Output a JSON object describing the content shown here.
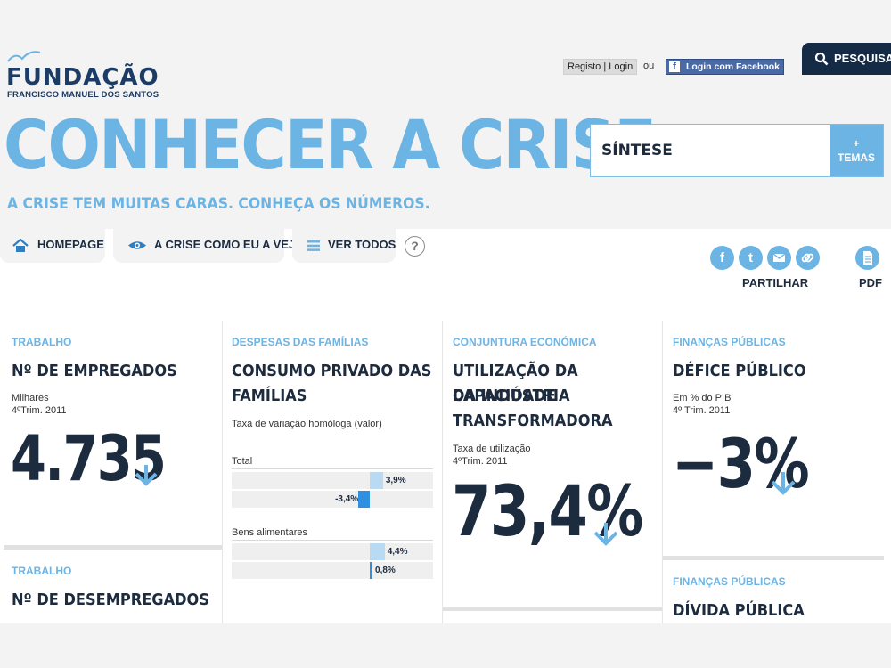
{
  "header": {
    "logo_name": "FUNDAÇÃO",
    "logo_sub": "FRANCISCO MANUEL DOS SANTOS",
    "login_label": "Registo | Login",
    "or_label": "ou",
    "facebook_label": "Login com Facebook",
    "search_label": "PESQUISA",
    "title": "CONHECER A CRISE:",
    "subtitle": "A CRISE TEM MUITAS CARAS. CONHEÇA OS NÚMEROS.",
    "selector_label": "SÍNTESE",
    "temas_plus": "+",
    "temas_label": "TEMAS"
  },
  "nav": {
    "tabs": [
      {
        "label": "HOMEPAGE",
        "icon": "home-icon"
      },
      {
        "label": "A CRISE COMO EU A VEJO",
        "icon": "eye-icon"
      },
      {
        "label": "VER TODOS",
        "icon": "list-icon"
      }
    ],
    "help_label": "?"
  },
  "share": {
    "label": "PARTILHAR",
    "pdf_label": "PDF",
    "icons": [
      "facebook-icon",
      "twitter-icon",
      "email-icon",
      "link-icon",
      "pdf-icon"
    ]
  },
  "cards": {
    "employed": {
      "category": "TRABALHO",
      "title": "Nº DE EMPREGADOS",
      "unit": "Milhares",
      "period": "4ºTrim. 2011",
      "value": "4.735",
      "trend": "down"
    },
    "unemployed": {
      "category": "TRABALHO",
      "title": "Nº DE DESEMPREGADOS"
    },
    "consumption": {
      "category": "DESPESAS DAS FAMÍLIAS",
      "title_line1": "CONSUMO PRIVADO DAS",
      "title_line2": "FAMÍLIAS",
      "measure": "Taxa de variação homóloga (valor)"
    },
    "capacity": {
      "category": "CONJUNTURA ECONÓMICA",
      "title_line1": "UTILIZAÇÃO DA CAPACIDADE",
      "title_line2": "DA INDÚSTRIA",
      "title_line3": "TRANSFORMADORA",
      "measure": "Taxa de utilização",
      "period": "4ºTrim. 2011",
      "value": "73,4%",
      "trend": "down"
    },
    "deficit": {
      "category": "FINANÇAS PÚBLICAS",
      "title": "DÉFICE PÚBLICO",
      "unit": "Em % do PIB",
      "period": "4º Trim. 2011",
      "value": "−3%",
      "trend": "down"
    },
    "debt": {
      "category": "FINANÇAS PÚBLICAS",
      "title": "DÍVIDA PÚBLICA"
    }
  },
  "chart_data": {
    "type": "bar",
    "orientation": "horizontal",
    "categories": [
      "Total",
      "Bens alimentares"
    ],
    "series": [],
    "groups": [
      {
        "label": "Total",
        "values": [
          3.9,
          -3.4
        ],
        "value_labels": [
          "3,9%",
          "-3,4%"
        ]
      },
      {
        "label": "Bens alimentares",
        "values": [
          4.4,
          0.8
        ],
        "value_labels": [
          "4,4%",
          "0,8%"
        ]
      }
    ],
    "colors": {
      "light": "#b9daf3",
      "dark": "#2f8fe0"
    },
    "ylabel": "Taxa de variação homóloga (valor)"
  },
  "colors": {
    "accent": "#6cb4e4",
    "navy": "#1d2b3e",
    "facebook": "#4a6aa5"
  }
}
